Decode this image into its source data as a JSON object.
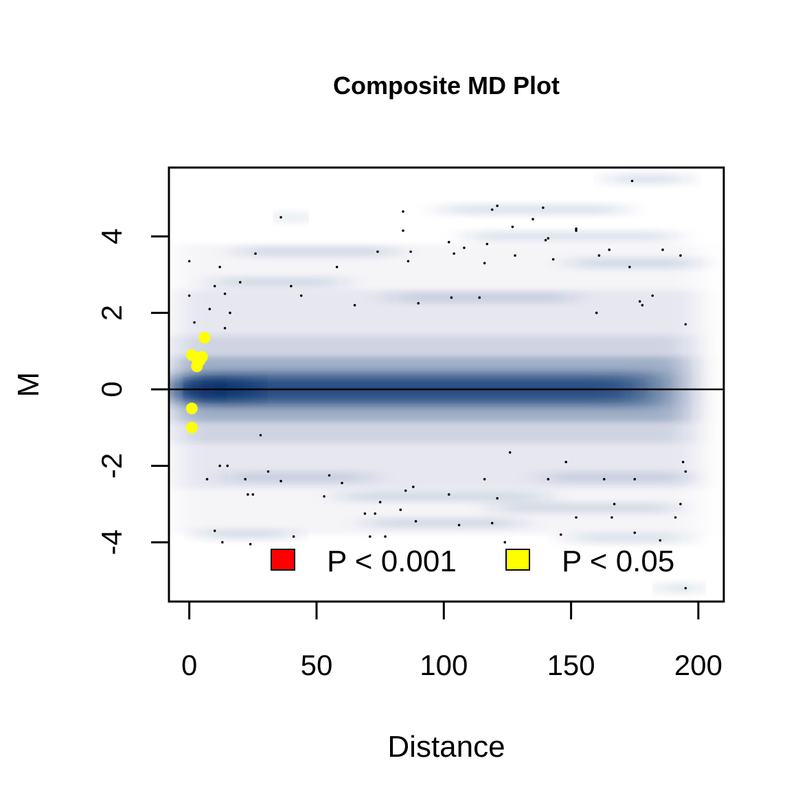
{
  "chart_data": {
    "type": "scatter",
    "title": "Composite MD Plot",
    "xlabel": "Distance",
    "ylabel": "M",
    "xlim": [
      -8,
      210
    ],
    "ylim": [
      -5.55,
      5.8
    ],
    "xticks": [
      0,
      50,
      100,
      150,
      200
    ],
    "yticks": [
      -4,
      -2,
      0,
      2,
      4
    ],
    "ytick_labels": [
      "-4",
      "-2",
      "0",
      "2",
      "4"
    ],
    "hline": 0,
    "grid": false,
    "legend": {
      "placement": "bottom-right",
      "items": [
        {
          "label": "P < 0.001",
          "color": "#ff0000"
        },
        {
          "label": "P < 0.05",
          "color": "#ffff00"
        }
      ]
    },
    "density_color": "#08306b",
    "series": [
      {
        "name": "P < 0.05",
        "color": "#ffff00",
        "points": [
          [
            1,
            0.9
          ],
          [
            3,
            0.8
          ],
          [
            5,
            0.85
          ],
          [
            4,
            0.75
          ],
          [
            6,
            1.35
          ],
          [
            3,
            0.6
          ],
          [
            1,
            -0.5
          ],
          [
            1,
            -1.0
          ]
        ]
      },
      {
        "color": "#000000",
        "points": [
          [
            0,
            3.35
          ],
          [
            0,
            2.45
          ],
          [
            2,
            1.75
          ],
          [
            8,
            2.1
          ],
          [
            10,
            2.7
          ],
          [
            12,
            3.2
          ],
          [
            14,
            2.5
          ],
          [
            16,
            2.0
          ],
          [
            14,
            1.6
          ],
          [
            20,
            2.8
          ],
          [
            26,
            3.55
          ],
          [
            36,
            4.5
          ],
          [
            40,
            2.7
          ],
          [
            44,
            2.45
          ],
          [
            58,
            3.2
          ],
          [
            65,
            2.2
          ],
          [
            74,
            3.6
          ],
          [
            84,
            4.65
          ],
          [
            84,
            4.15
          ],
          [
            86,
            3.35
          ],
          [
            87,
            3.6
          ],
          [
            90,
            2.25
          ],
          [
            102,
            3.85
          ],
          [
            103,
            2.4
          ],
          [
            104,
            3.55
          ],
          [
            108,
            3.7
          ],
          [
            114,
            2.4
          ],
          [
            116,
            3.3
          ],
          [
            117,
            3.8
          ],
          [
            119,
            4.7
          ],
          [
            121,
            4.8
          ],
          [
            127,
            4.25
          ],
          [
            128,
            3.5
          ],
          [
            135,
            4.45
          ],
          [
            139,
            4.75
          ],
          [
            140,
            3.9
          ],
          [
            141,
            3.95
          ],
          [
            143,
            3.4
          ],
          [
            152,
            4.15
          ],
          [
            152,
            4.2
          ],
          [
            160,
            2.0
          ],
          [
            161,
            3.5
          ],
          [
            165,
            3.65
          ],
          [
            173,
            3.2
          ],
          [
            174,
            5.45
          ],
          [
            177,
            2.3
          ],
          [
            178,
            2.2
          ],
          [
            182,
            2.45
          ],
          [
            186,
            3.65
          ],
          [
            193,
            3.5
          ],
          [
            195,
            1.7
          ],
          [
            12,
            -2.0
          ],
          [
            15,
            -2.0
          ],
          [
            28,
            -1.2
          ],
          [
            7,
            -2.35
          ],
          [
            10,
            -3.7
          ],
          [
            13,
            -4.0
          ],
          [
            22,
            -2.35
          ],
          [
            23,
            -2.75
          ],
          [
            25,
            -2.75
          ],
          [
            24,
            -4.05
          ],
          [
            31,
            -2.15
          ],
          [
            36,
            -2.4
          ],
          [
            41,
            -3.85
          ],
          [
            53,
            -2.8
          ],
          [
            55,
            -2.25
          ],
          [
            60,
            -2.45
          ],
          [
            69,
            -3.25
          ],
          [
            71,
            -3.85
          ],
          [
            73,
            -3.25
          ],
          [
            75,
            -2.95
          ],
          [
            77,
            -3.85
          ],
          [
            83,
            -3.15
          ],
          [
            85,
            -2.65
          ],
          [
            88,
            -2.55
          ],
          [
            89,
            -3.45
          ],
          [
            102,
            -2.75
          ],
          [
            106,
            -3.55
          ],
          [
            116,
            -2.35
          ],
          [
            119,
            -3.5
          ],
          [
            121,
            -2.85
          ],
          [
            124,
            -4.0
          ],
          [
            126,
            -1.65
          ],
          [
            141,
            -2.35
          ],
          [
            146,
            -3.8
          ],
          [
            148,
            -1.9
          ],
          [
            152,
            -3.35
          ],
          [
            163,
            -2.35
          ],
          [
            166,
            -3.35
          ],
          [
            167,
            -3.0
          ],
          [
            175,
            -2.35
          ],
          [
            175,
            -3.75
          ],
          [
            185,
            -3.95
          ],
          [
            191,
            -3.35
          ],
          [
            193,
            -3.0
          ],
          [
            194,
            -1.9
          ],
          [
            195,
            -2.15
          ],
          [
            195,
            -5.2
          ]
        ]
      }
    ]
  }
}
